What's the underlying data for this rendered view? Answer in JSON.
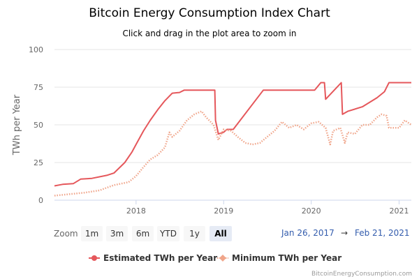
{
  "chart_data": {
    "type": "line",
    "title": "Bitcoin Energy Consumption Index Chart",
    "subtitle": "Click and drag in the plot area to zoom in",
    "ylabel": "TWh per Year",
    "ylim": [
      0,
      100
    ],
    "yticks": [
      "0",
      "25",
      "50",
      "75",
      "100"
    ],
    "xticks": [
      "2018",
      "2019",
      "2020",
      "2021"
    ],
    "xlim": [
      "2017-01-26",
      "2021-02-21"
    ],
    "grid": true,
    "legend_position": "bottom",
    "series": [
      {
        "name": "Estimated TWh per Year",
        "color": "#e5575b",
        "style": "solid",
        "points": [
          [
            "2017-01-26",
            9.5
          ],
          [
            "2017-03-01",
            10.5
          ],
          [
            "2017-04-15",
            11
          ],
          [
            "2017-05-15",
            14
          ],
          [
            "2017-07-01",
            14.5
          ],
          [
            "2017-09-01",
            16.5
          ],
          [
            "2017-10-01",
            18
          ],
          [
            "2017-11-15",
            25
          ],
          [
            "2017-12-15",
            32
          ],
          [
            "2018-01-01",
            37
          ],
          [
            "2018-02-01",
            46
          ],
          [
            "2018-03-01",
            53
          ],
          [
            "2018-04-01",
            60
          ],
          [
            "2018-05-01",
            66
          ],
          [
            "2018-06-01",
            71
          ],
          [
            "2018-07-01",
            71.5
          ],
          [
            "2018-07-20",
            73
          ],
          [
            "2018-11-25",
            73
          ],
          [
            "2018-11-28",
            53
          ],
          [
            "2018-12-10",
            44
          ],
          [
            "2018-12-31",
            45
          ],
          [
            "2019-01-15",
            47
          ],
          [
            "2019-02-10",
            47
          ],
          [
            "2019-06-15",
            73
          ],
          [
            "2020-01-15",
            73
          ],
          [
            "2020-02-10",
            78
          ],
          [
            "2020-02-25",
            78
          ],
          [
            "2020-03-01",
            67
          ],
          [
            "2020-05-05",
            78
          ],
          [
            "2020-05-10",
            57
          ],
          [
            "2020-06-01",
            59
          ],
          [
            "2020-08-01",
            62
          ],
          [
            "2020-10-01",
            68
          ],
          [
            "2020-11-01",
            72
          ],
          [
            "2020-11-20",
            78
          ],
          [
            "2021-02-21",
            78
          ]
        ]
      },
      {
        "name": "Minimum TWh per Year",
        "color": "#f0a58a",
        "style": "dotted",
        "points": [
          [
            "2017-01-26",
            3
          ],
          [
            "2017-06-01",
            5
          ],
          [
            "2017-08-01",
            6.5
          ],
          [
            "2017-10-01",
            10
          ],
          [
            "2017-12-01",
            12
          ],
          [
            "2018-01-01",
            16
          ],
          [
            "2018-02-01",
            22
          ],
          [
            "2018-03-01",
            27
          ],
          [
            "2018-04-01",
            30
          ],
          [
            "2018-05-01",
            35
          ],
          [
            "2018-05-20",
            45
          ],
          [
            "2018-06-01",
            42
          ],
          [
            "2018-07-01",
            46
          ],
          [
            "2018-08-01",
            53
          ],
          [
            "2018-09-01",
            57
          ],
          [
            "2018-10-01",
            59
          ],
          [
            "2018-10-20",
            55
          ],
          [
            "2018-11-20",
            50
          ],
          [
            "2018-12-10",
            40
          ],
          [
            "2019-01-01",
            47
          ],
          [
            "2019-02-01",
            46
          ],
          [
            "2019-03-01",
            42
          ],
          [
            "2019-04-01",
            38
          ],
          [
            "2019-05-01",
            37
          ],
          [
            "2019-06-01",
            38
          ],
          [
            "2019-07-01",
            42
          ],
          [
            "2019-08-01",
            46
          ],
          [
            "2019-09-01",
            52
          ],
          [
            "2019-10-01",
            48
          ],
          [
            "2019-11-01",
            50
          ],
          [
            "2019-12-01",
            47
          ],
          [
            "2020-01-01",
            51
          ],
          [
            "2020-02-01",
            52
          ],
          [
            "2020-03-01",
            48
          ],
          [
            "2020-03-20",
            37
          ],
          [
            "2020-04-01",
            46
          ],
          [
            "2020-05-01",
            48
          ],
          [
            "2020-05-20",
            38
          ],
          [
            "2020-06-01",
            45
          ],
          [
            "2020-07-01",
            44
          ],
          [
            "2020-08-01",
            50
          ],
          [
            "2020-09-01",
            50
          ],
          [
            "2020-10-01",
            55
          ],
          [
            "2020-10-20",
            57
          ],
          [
            "2020-11-10",
            56
          ],
          [
            "2020-11-20",
            48
          ],
          [
            "2021-01-01",
            48
          ],
          [
            "2021-01-25",
            53
          ],
          [
            "2021-02-21",
            50
          ]
        ]
      }
    ]
  },
  "range_selector": {
    "label": "Zoom",
    "buttons": [
      "1m",
      "3m",
      "6m",
      "YTD",
      "1y",
      "All"
    ],
    "selected": "All",
    "from": "Jan 26, 2017",
    "arrow": "→",
    "to": "Feb 21, 2021"
  },
  "credit": "BitcoinEnergyConsumption.com"
}
